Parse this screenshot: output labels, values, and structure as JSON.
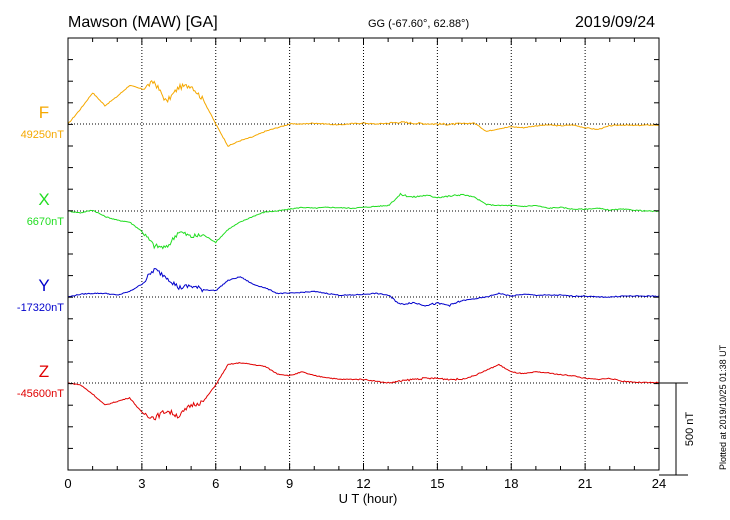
{
  "header": {
    "station": "Mawson (MAW)  [GA]",
    "coords": "GG (-67.60°,  62.88°)",
    "date": "2019/09/24"
  },
  "plotted_note": "Plotted at 2019/10/25 01:38 UT",
  "scale_bar_label": "500 nT",
  "colors": {
    "F": "#f5a800",
    "X": "#22dd22",
    "Y": "#0000cc",
    "Z": "#e00000"
  },
  "chart_data": {
    "type": "line",
    "xlabel": "U T (hour)",
    "xlim": [
      0,
      24
    ],
    "x_ticks": [
      0,
      3,
      6,
      9,
      12,
      15,
      18,
      21,
      24
    ],
    "x_tick_labels": [
      "0",
      "3",
      "6",
      "9",
      "12",
      "15",
      "18",
      "21",
      "24"
    ],
    "scale_bar_nT": 500,
    "x": [
      0,
      0.5,
      1,
      1.5,
      2,
      2.5,
      3,
      3.5,
      4,
      4.5,
      5,
      5.5,
      6,
      6.5,
      7,
      7.5,
      8,
      8.5,
      9,
      9.5,
      10,
      10.5,
      11,
      11.5,
      12,
      12.5,
      13,
      13.5,
      14,
      14.5,
      15,
      15.5,
      16,
      16.5,
      17,
      17.5,
      18,
      18.5,
      19,
      19.5,
      20,
      20.5,
      21,
      21.5,
      22,
      22.5,
      23,
      23.5,
      24
    ],
    "series": [
      {
        "key": "F",
        "name": "F",
        "baseline_label": "49250nT",
        "baseline": 49250,
        "values": [
          49250,
          49330,
          49420,
          49350,
          49400,
          49460,
          49440,
          49480,
          49370,
          49450,
          49460,
          49380,
          49250,
          49130,
          49160,
          49180,
          49210,
          49230,
          49250,
          49250,
          49255,
          49250,
          49245,
          49252,
          49255,
          49250,
          49255,
          49260,
          49255,
          49252,
          49250,
          49248,
          49252,
          49255,
          49210,
          49225,
          49235,
          49230,
          49240,
          49245,
          49240,
          49245,
          49230,
          49220,
          49240,
          49245,
          49242,
          49244,
          49244
        ]
      },
      {
        "key": "X",
        "name": "X",
        "baseline_label": "6670nT",
        "baseline": 6670,
        "values": [
          6670,
          6660,
          6675,
          6640,
          6620,
          6610,
          6560,
          6480,
          6470,
          6560,
          6530,
          6540,
          6500,
          6570,
          6610,
          6640,
          6665,
          6670,
          6680,
          6690,
          6685,
          6690,
          6688,
          6685,
          6690,
          6695,
          6700,
          6760,
          6745,
          6755,
          6745,
          6750,
          6760,
          6745,
          6705,
          6700,
          6700,
          6695,
          6700,
          6685,
          6690,
          6680,
          6680,
          6685,
          6675,
          6680,
          6675,
          6670,
          6668
        ]
      },
      {
        "key": "Y",
        "name": "Y",
        "baseline_label": "-17320nT",
        "baseline": -17320,
        "values": [
          -17320,
          -17305,
          -17300,
          -17300,
          -17310,
          -17290,
          -17250,
          -17170,
          -17210,
          -17270,
          -17260,
          -17280,
          -17285,
          -17230,
          -17210,
          -17250,
          -17270,
          -17300,
          -17300,
          -17295,
          -17290,
          -17300,
          -17310,
          -17310,
          -17305,
          -17300,
          -17310,
          -17360,
          -17350,
          -17365,
          -17355,
          -17365,
          -17340,
          -17330,
          -17320,
          -17300,
          -17315,
          -17305,
          -17310,
          -17310,
          -17310,
          -17315,
          -17315,
          -17320,
          -17320,
          -17315,
          -17315,
          -17315,
          -17315
        ]
      },
      {
        "key": "Z",
        "name": "Z",
        "baseline_label": "-45600nT",
        "baseline": -45600,
        "values": [
          -45600,
          -45610,
          -45660,
          -45720,
          -45700,
          -45680,
          -45760,
          -45790,
          -45750,
          -45780,
          -45720,
          -45700,
          -45610,
          -45500,
          -45490,
          -45500,
          -45510,
          -45550,
          -45560,
          -45540,
          -45560,
          -45570,
          -45580,
          -45580,
          -45580,
          -45590,
          -45600,
          -45590,
          -45580,
          -45575,
          -45575,
          -45580,
          -45580,
          -45560,
          -45530,
          -45500,
          -45540,
          -45550,
          -45540,
          -45545,
          -45555,
          -45560,
          -45575,
          -45580,
          -45575,
          -45590,
          -45595,
          -45598,
          -45598
        ]
      }
    ]
  }
}
